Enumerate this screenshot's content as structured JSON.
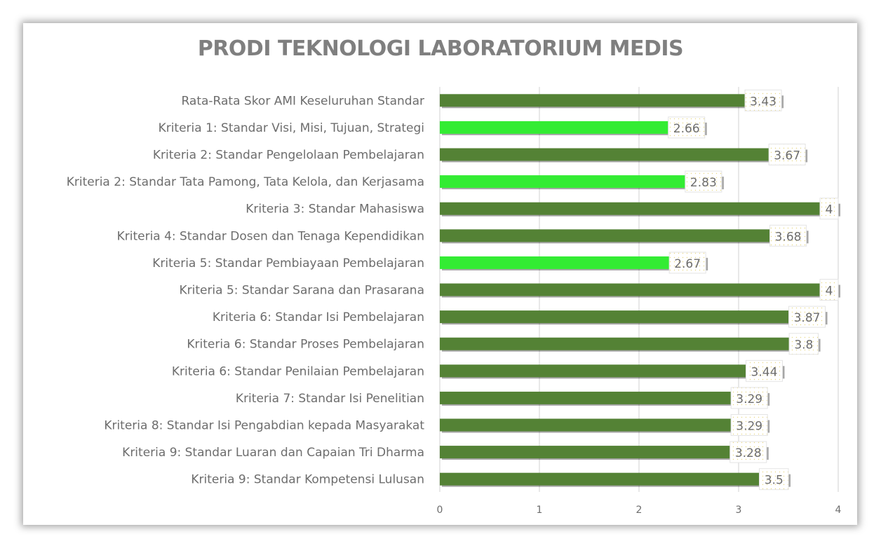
{
  "chart_data": {
    "type": "bar",
    "orientation": "horizontal",
    "title": "PRODI TEKNOLOGI LABORATORIUM MEDIS",
    "categories": [
      "Rata-Rata Skor AMI Keseluruhan Standar",
      "Kriteria 1: Standar Visi, Misi, Tujuan, Strategi",
      "Kriteria 2: Standar Pengelolaan Pembelajaran",
      "Kriteria 2: Standar Tata Pamong, Tata Kelola, dan Kerjasama",
      "Kriteria 3: Standar Mahasiswa",
      "Kriteria 4: Standar Dosen dan Tenaga Kependidikan",
      "Kriteria 5: Standar Pembiayaan Pembelajaran",
      "Kriteria 5: Standar Sarana dan Prasarana",
      "Kriteria 6: Standar Isi Pembelajaran",
      "Kriteria 6: Standar Proses Pembelajaran",
      "Kriteria 6: Standar Penilaian Pembelajaran",
      "Kriteria 7: Standar Isi Penelitian",
      "Kriteria 8: Standar Isi Pengabdian kepada Masyarakat",
      "Kriteria 9: Standar Luaran dan Capaian Tri Dharma",
      "Kriteria 9: Standar Kompetensi Lulusan"
    ],
    "values": [
      3.43,
      2.66,
      3.67,
      2.83,
      4,
      3.68,
      2.67,
      4,
      3.87,
      3.8,
      3.44,
      3.29,
      3.29,
      3.28,
      3.5
    ],
    "data_labels": [
      "3.43",
      "2.66",
      "3.67",
      "2.83",
      "4",
      "3.68",
      "2.67",
      "4",
      "3.87",
      "3.8",
      "3.44",
      "3.29",
      "3.29",
      "3.28",
      "3.5"
    ],
    "bar_colors": [
      "#548235",
      "#33ec33",
      "#548235",
      "#33ec33",
      "#548235",
      "#548235",
      "#33ec33",
      "#548235",
      "#548235",
      "#548235",
      "#548235",
      "#548235",
      "#548235",
      "#548235",
      "#548235"
    ],
    "xlim": [
      0,
      4
    ],
    "xticks": [
      0,
      1,
      2,
      3,
      4
    ],
    "xtick_labels": [
      "0",
      "1",
      "2",
      "3",
      "4"
    ],
    "grid": true,
    "legend": "none",
    "xlabel": "",
    "ylabel": ""
  }
}
